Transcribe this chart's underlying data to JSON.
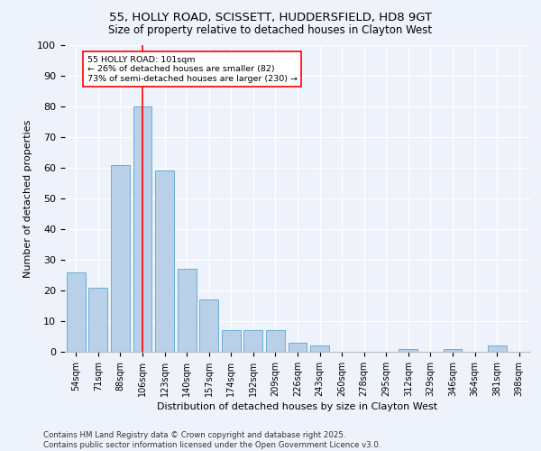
{
  "title1": "55, HOLLY ROAD, SCISSETT, HUDDERSFIELD, HD8 9GT",
  "title2": "Size of property relative to detached houses in Clayton West",
  "xlabel": "Distribution of detached houses by size in Clayton West",
  "ylabel": "Number of detached properties",
  "categories": [
    "54sqm",
    "71sqm",
    "88sqm",
    "106sqm",
    "123sqm",
    "140sqm",
    "157sqm",
    "174sqm",
    "192sqm",
    "209sqm",
    "226sqm",
    "243sqm",
    "260sqm",
    "278sqm",
    "295sqm",
    "312sqm",
    "329sqm",
    "346sqm",
    "364sqm",
    "381sqm",
    "398sqm"
  ],
  "values": [
    26,
    21,
    61,
    80,
    59,
    27,
    17,
    7,
    7,
    7,
    3,
    2,
    0,
    0,
    0,
    1,
    0,
    1,
    0,
    2,
    0
  ],
  "bar_color": "#b8d0e8",
  "bar_edge_color": "#6baed6",
  "bg_color": "#eef2fb",
  "vline_x": 3.0,
  "vline_color": "red",
  "annotation_text": "55 HOLLY ROAD: 101sqm\n← 26% of detached houses are smaller (82)\n73% of semi-detached houses are larger (230) →",
  "annotation_box_color": "white",
  "annotation_box_edge": "red",
  "footer": "Contains HM Land Registry data © Crown copyright and database right 2025.\nContains public sector information licensed under the Open Government Licence v3.0.",
  "ylim": [
    0,
    100
  ],
  "yticks": [
    0,
    10,
    20,
    30,
    40,
    50,
    60,
    70,
    80,
    90,
    100
  ]
}
